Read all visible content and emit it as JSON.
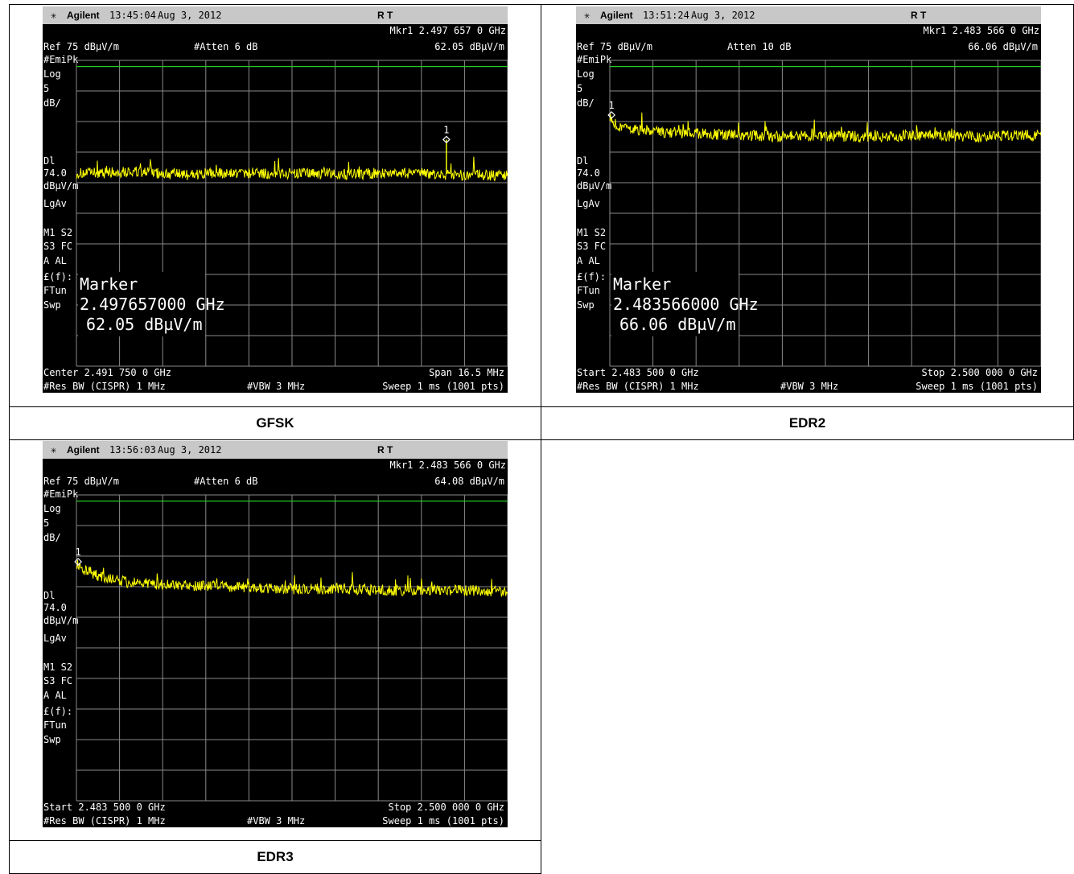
{
  "colors": {
    "trace": "#ffff00",
    "grid": "#8a8a8a",
    "refline": "#22cc22",
    "screen": "#000000",
    "header": "#c8c8c8"
  },
  "panels": [
    {
      "caption": "GFSK",
      "header": {
        "brand": "Agilent",
        "time": "13:45:04",
        "date": "Aug 3, 2012",
        "mode": "R   T"
      },
      "mkr_label": "Mkr1  2.497 657 0 GHz",
      "mkr_value": "62.05 dBµV/m",
      "ref": "Ref 75 dBµV/m",
      "atten": "#Atten 6 dB",
      "left_labels": [
        "#EmiPk",
        "Log",
        "5",
        "dB/",
        "Dl",
        "74.0",
        "dBµV/m",
        "LgAv",
        "M1  S2",
        "S3  FC",
        "A   AL",
        "£(f):",
        "FTun",
        "Swp"
      ],
      "marker_box": {
        "title": "Marker",
        "freq": "2.497657000 GHz",
        "level": "62.05 dBµV/m"
      },
      "bottom_left1": "Center 2.491 750 0 GHz",
      "bottom_right1": "Span 16.5 MHz",
      "bottom_left2": "#Res BW (CISPR) 1 MHz",
      "bottom_mid2": "#VBW 3 MHz",
      "bottom_right2": "Sweep 1 ms (1001 pts)"
    },
    {
      "caption": "EDR2",
      "header": {
        "brand": "Agilent",
        "time": "13:51:24",
        "date": "Aug 3, 2012",
        "mode": "R   T"
      },
      "mkr_label": "Mkr1  2.483 566 0 GHz",
      "mkr_value": "66.06 dBµV/m",
      "ref": "Ref 75 dBµV/m",
      "atten": "Atten 10 dB",
      "left_labels": [
        "#EmiPk",
        "Log",
        "5",
        "dB/",
        "Dl",
        "74.0",
        "dBµV/m",
        "LgAv",
        "M1  S2",
        "S3  FC",
        "A   AL",
        "£(f):",
        "FTun",
        "Swp"
      ],
      "marker_box": {
        "title": "Marker",
        "freq": "2.483566000 GHz",
        "level": "66.06 dBµV/m"
      },
      "bottom_left1": "Start 2.483 500 0 GHz",
      "bottom_right1": "Stop 2.500 000 0 GHz",
      "bottom_left2": "#Res BW (CISPR) 1 MHz",
      "bottom_mid2": "#VBW 3 MHz",
      "bottom_right2": "Sweep 1 ms (1001 pts)"
    },
    {
      "caption": "EDR3",
      "header": {
        "brand": "Agilent",
        "time": "13:56:03",
        "date": "Aug 3, 2012",
        "mode": "R   T"
      },
      "mkr_label": "Mkr1  2.483 566 0 GHz",
      "mkr_value": "64.08 dBµV/m",
      "ref": "Ref 75 dBµV/m",
      "atten": "#Atten 6 dB",
      "left_labels": [
        "#EmiPk",
        "Log",
        "5",
        "dB/",
        "Dl",
        "74.0",
        "dBµV/m",
        "LgAv",
        "M1  S2",
        "S3  FC",
        "A   AL",
        "£(f):",
        "FTun",
        "Swp"
      ],
      "marker_box": null,
      "bottom_left1": "Start 2.483 500 0 GHz",
      "bottom_right1": "Stop 2.500 000 0 GHz",
      "bottom_left2": "#Res BW (CISPR) 1 MHz",
      "bottom_mid2": "#VBW 3 MHz",
      "bottom_right2": "Sweep 1 ms (1001 pts)"
    }
  ],
  "chart_data": [
    {
      "type": "line",
      "x_unit": "GHz",
      "y_unit": "dBµV/m",
      "xlim": [
        2.4835,
        2.5
      ],
      "ylim": [
        25,
        75
      ],
      "ref_level": 75,
      "scale_per_div": 5,
      "display_line": 74.0,
      "grid": true,
      "series": [
        {
          "x": [
            2.4835,
            2.4856,
            2.4877,
            2.4897,
            2.4918,
            2.4938,
            2.4959,
            2.4977,
            2.5
          ],
          "y": [
            56.5,
            56.8,
            56.3,
            56.6,
            56.5,
            56.4,
            56.6,
            56.3,
            56.2
          ]
        }
      ],
      "marker": {
        "x": 2.497657,
        "y": 62.05
      }
    },
    {
      "type": "line",
      "x_unit": "GHz",
      "y_unit": "dBµV/m",
      "xlim": [
        2.4835,
        2.5
      ],
      "ylim": [
        25,
        75
      ],
      "ref_level": 75,
      "scale_per_div": 5,
      "display_line": 74.0,
      "grid": true,
      "series": [
        {
          "x": [
            2.4835,
            2.4838,
            2.4855,
            2.4875,
            2.4895,
            2.4915,
            2.4935,
            2.4955,
            2.4975,
            2.5
          ],
          "y": [
            66.0,
            64.0,
            63.3,
            62.9,
            62.6,
            62.7,
            62.5,
            62.8,
            62.5,
            62.8
          ]
        }
      ],
      "marker": {
        "x": 2.483566,
        "y": 66.06
      }
    },
    {
      "type": "line",
      "x_unit": "GHz",
      "y_unit": "dBµV/m",
      "xlim": [
        2.4835,
        2.5
      ],
      "ylim": [
        25,
        75
      ],
      "ref_level": 75,
      "scale_per_div": 5,
      "display_line": 74.0,
      "grid": true,
      "series": [
        {
          "x": [
            2.4835,
            2.4838,
            2.4845,
            2.4855,
            2.4875,
            2.4895,
            2.4915,
            2.4935,
            2.4955,
            2.4975,
            2.5
          ],
          "y": [
            64.0,
            62.8,
            61.5,
            60.7,
            60.2,
            60.0,
            59.5,
            59.7,
            59.4,
            59.5,
            59.2
          ]
        }
      ],
      "marker": {
        "x": 2.483566,
        "y": 64.08
      }
    }
  ]
}
